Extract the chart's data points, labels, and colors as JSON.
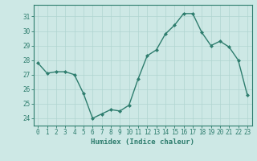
{
  "x": [
    0,
    1,
    2,
    3,
    4,
    5,
    6,
    7,
    8,
    9,
    10,
    11,
    12,
    13,
    14,
    15,
    16,
    17,
    18,
    19,
    20,
    21,
    22,
    23
  ],
  "y": [
    27.8,
    27.1,
    27.2,
    27.2,
    27.0,
    25.7,
    24.0,
    24.3,
    24.6,
    24.5,
    24.9,
    26.7,
    28.3,
    28.7,
    29.8,
    30.4,
    31.2,
    31.2,
    29.9,
    29.0,
    29.3,
    28.9,
    28.0,
    25.6
  ],
  "line_color": "#2e7d6e",
  "marker": "D",
  "marker_size": 2.0,
  "bg_color": "#cde8e5",
  "grid_color": "#b0d4d0",
  "tick_color": "#2e7d6e",
  "label_color": "#2e7d6e",
  "xlabel": "Humidex (Indice chaleur)",
  "ylim": [
    23.5,
    31.8
  ],
  "yticks": [
    24,
    25,
    26,
    27,
    28,
    29,
    30,
    31
  ],
  "xticks": [
    0,
    1,
    2,
    3,
    4,
    5,
    6,
    7,
    8,
    9,
    10,
    11,
    12,
    13,
    14,
    15,
    16,
    17,
    18,
    19,
    20,
    21,
    22,
    23
  ],
  "line_width": 1.0,
  "tick_fontsize": 5.5,
  "xlabel_fontsize": 6.5
}
